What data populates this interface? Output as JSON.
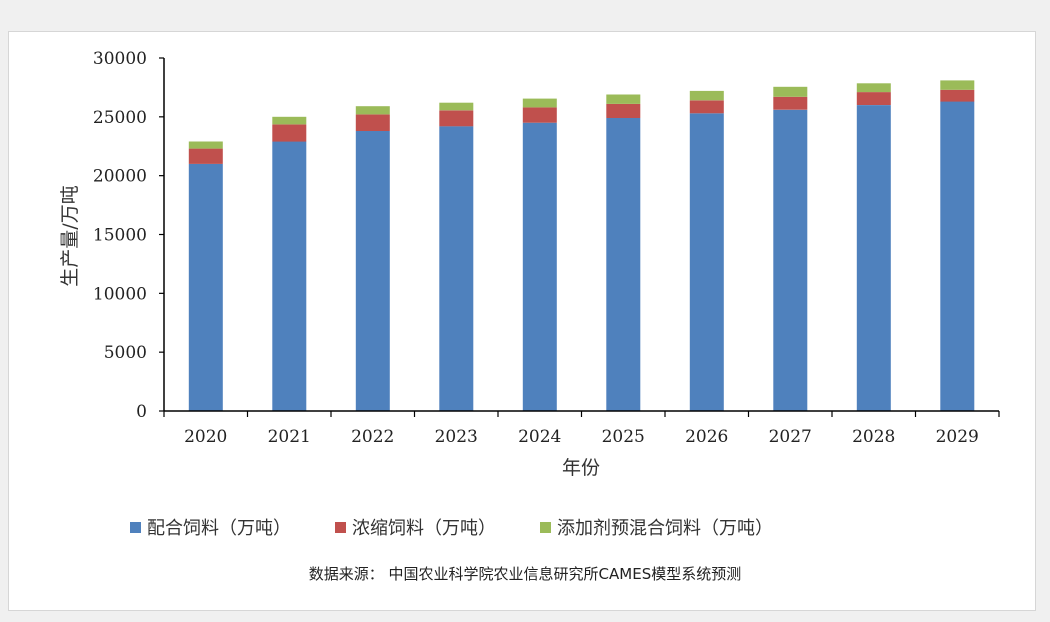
{
  "source_note": "数据来源： 中国农业科学院农业信息研究所CAMES模型系统预测",
  "colors": {
    "compound": "#4f81bd",
    "concentrate": "#c0504d",
    "premix": "#9bbb59",
    "axis": "#000000"
  },
  "chart_data": {
    "type": "bar",
    "stacked": true,
    "xlabel": "年份",
    "ylabel": "生产量/万吨",
    "ylim": [
      0,
      30000
    ],
    "yticks": [
      0,
      5000,
      10000,
      15000,
      20000,
      25000,
      30000
    ],
    "grid": false,
    "legend_position": "bottom",
    "categories": [
      "2020",
      "2021",
      "2022",
      "2023",
      "2024",
      "2025",
      "2026",
      "2027",
      "2028",
      "2029"
    ],
    "series": [
      {
        "name": "配合饲料（万吨）",
        "color_key": "compound",
        "values": [
          21000,
          22900,
          23800,
          24200,
          24500,
          24900,
          25300,
          25600,
          26000,
          26300
        ]
      },
      {
        "name": "浓缩饲料（万吨）",
        "color_key": "concentrate",
        "values": [
          1300,
          1450,
          1400,
          1350,
          1300,
          1200,
          1100,
          1100,
          1100,
          1000
        ]
      },
      {
        "name": "添加剂预混合饲料（万吨）",
        "color_key": "premix",
        "values": [
          600,
          650,
          700,
          650,
          750,
          800,
          800,
          850,
          750,
          800
        ]
      }
    ]
  }
}
